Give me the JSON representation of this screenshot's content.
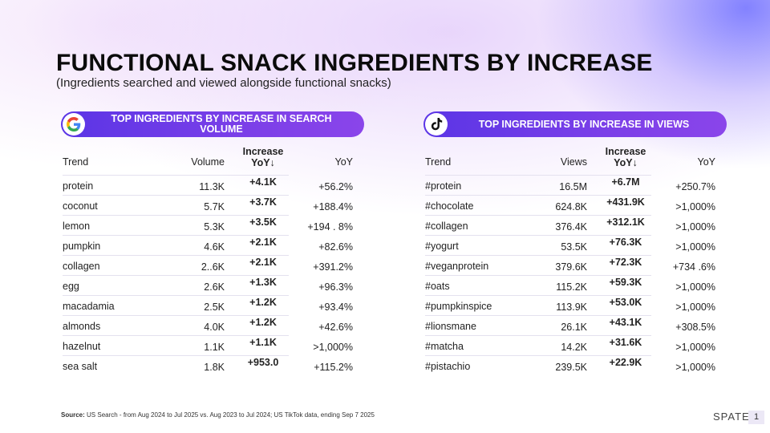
{
  "title": "FUNCTIONAL SNACK INGREDIENTS BY INCREASE",
  "subtitle": "(Ingredients searched and viewed alongside functional snacks)",
  "left_panel": {
    "icon": "google-g-icon",
    "heading": "TOP INGREDIENTS BY INCREASE IN SEARCH VOLUME",
    "columns": {
      "trend": "Trend",
      "metric": "Volume",
      "increase": "Increase",
      "increase_sub": "YoY↓",
      "yoy": "YoY"
    },
    "rows": [
      {
        "trend": "protein",
        "metric": "11.3K",
        "increase": "+4.1K",
        "yoy": "+56.2%"
      },
      {
        "trend": "coconut",
        "metric": "5.7K",
        "increase": "+3.7K",
        "yoy": "+188.4%"
      },
      {
        "trend": "lemon",
        "metric": "5.3K",
        "increase": "+3.5K",
        "yoy": "+194 . 8%"
      },
      {
        "trend": "pumpkin",
        "metric": "4.6K",
        "increase": "+2.1K",
        "yoy": "+82.6%"
      },
      {
        "trend": "collagen",
        "metric": "2..6K",
        "increase": "+2.1K",
        "yoy": "+391.2%"
      },
      {
        "trend": "egg",
        "metric": "2.6K",
        "increase": "+1.3K",
        "yoy": "+96.3%"
      },
      {
        "trend": "macadamia",
        "metric": "2.5K",
        "increase": "+1.2K",
        "yoy": "+93.4%"
      },
      {
        "trend": "almonds",
        "metric": "4.0K",
        "increase": "+1.2K",
        "yoy": "+42.6%"
      },
      {
        "trend": "hazelnut",
        "metric": "1.1K",
        "increase": "+1.1K",
        "yoy": ">1,000%"
      },
      {
        "trend": "sea salt",
        "metric": "1.8K",
        "increase": "+953.0",
        "yoy": "+115.2%"
      }
    ]
  },
  "right_panel": {
    "icon": "tiktok-icon",
    "heading": "TOP INGREDIENTS BY INCREASE IN VIEWS",
    "columns": {
      "trend": "Trend",
      "metric": "Views",
      "increase": "Increase",
      "increase_sub": "YoY↓",
      "yoy": "YoY"
    },
    "rows": [
      {
        "trend": "#protein",
        "metric": "16.5M",
        "increase": "+6.7M",
        "yoy": "+250.7%"
      },
      {
        "trend": "#chocolate",
        "metric": "624.8K",
        "increase": "+431.9K",
        "yoy": ">1,000%"
      },
      {
        "trend": "#collagen",
        "metric": "376.4K",
        "increase": "+312.1K",
        "yoy": ">1,000%"
      },
      {
        "trend": "#yogurt",
        "metric": "53.5K",
        "increase": "+76.3K",
        "yoy": ">1,000%"
      },
      {
        "trend": "#veganprotein",
        "metric": "379.6K",
        "increase": "+72.3K",
        "yoy": "+734 .6%"
      },
      {
        "trend": "#oats",
        "metric": "115.2K",
        "increase": "+59.3K",
        "yoy": ">1,000%"
      },
      {
        "trend": "#pumpkinspice",
        "metric": "113.9K",
        "increase": "+53.0K",
        "yoy": ">1,000%"
      },
      {
        "trend": "#lionsmane",
        "metric": "26.1K",
        "increase": "+43.1K",
        "yoy": "+308.5%"
      },
      {
        "trend": "#matcha",
        "metric": "14.2K",
        "increase": "+31.6K",
        "yoy": ">1,000%"
      },
      {
        "trend": "#pistachio",
        "metric": "239.5K",
        "increase": "+22.9K",
        "yoy": ">1,000%"
      }
    ]
  },
  "source": {
    "label": "Source:",
    "text": " US Search - from Aug 2024 to Jul 2025 vs. Aug 2023 to Jul 2024; US TikTok data, ending Sep 7 2025"
  },
  "footer": {
    "brand": "SPATE",
    "page": "1"
  },
  "colors": {
    "accent_start": "#5b35e6",
    "accent_end": "#8a45ea",
    "text": "#222222"
  }
}
